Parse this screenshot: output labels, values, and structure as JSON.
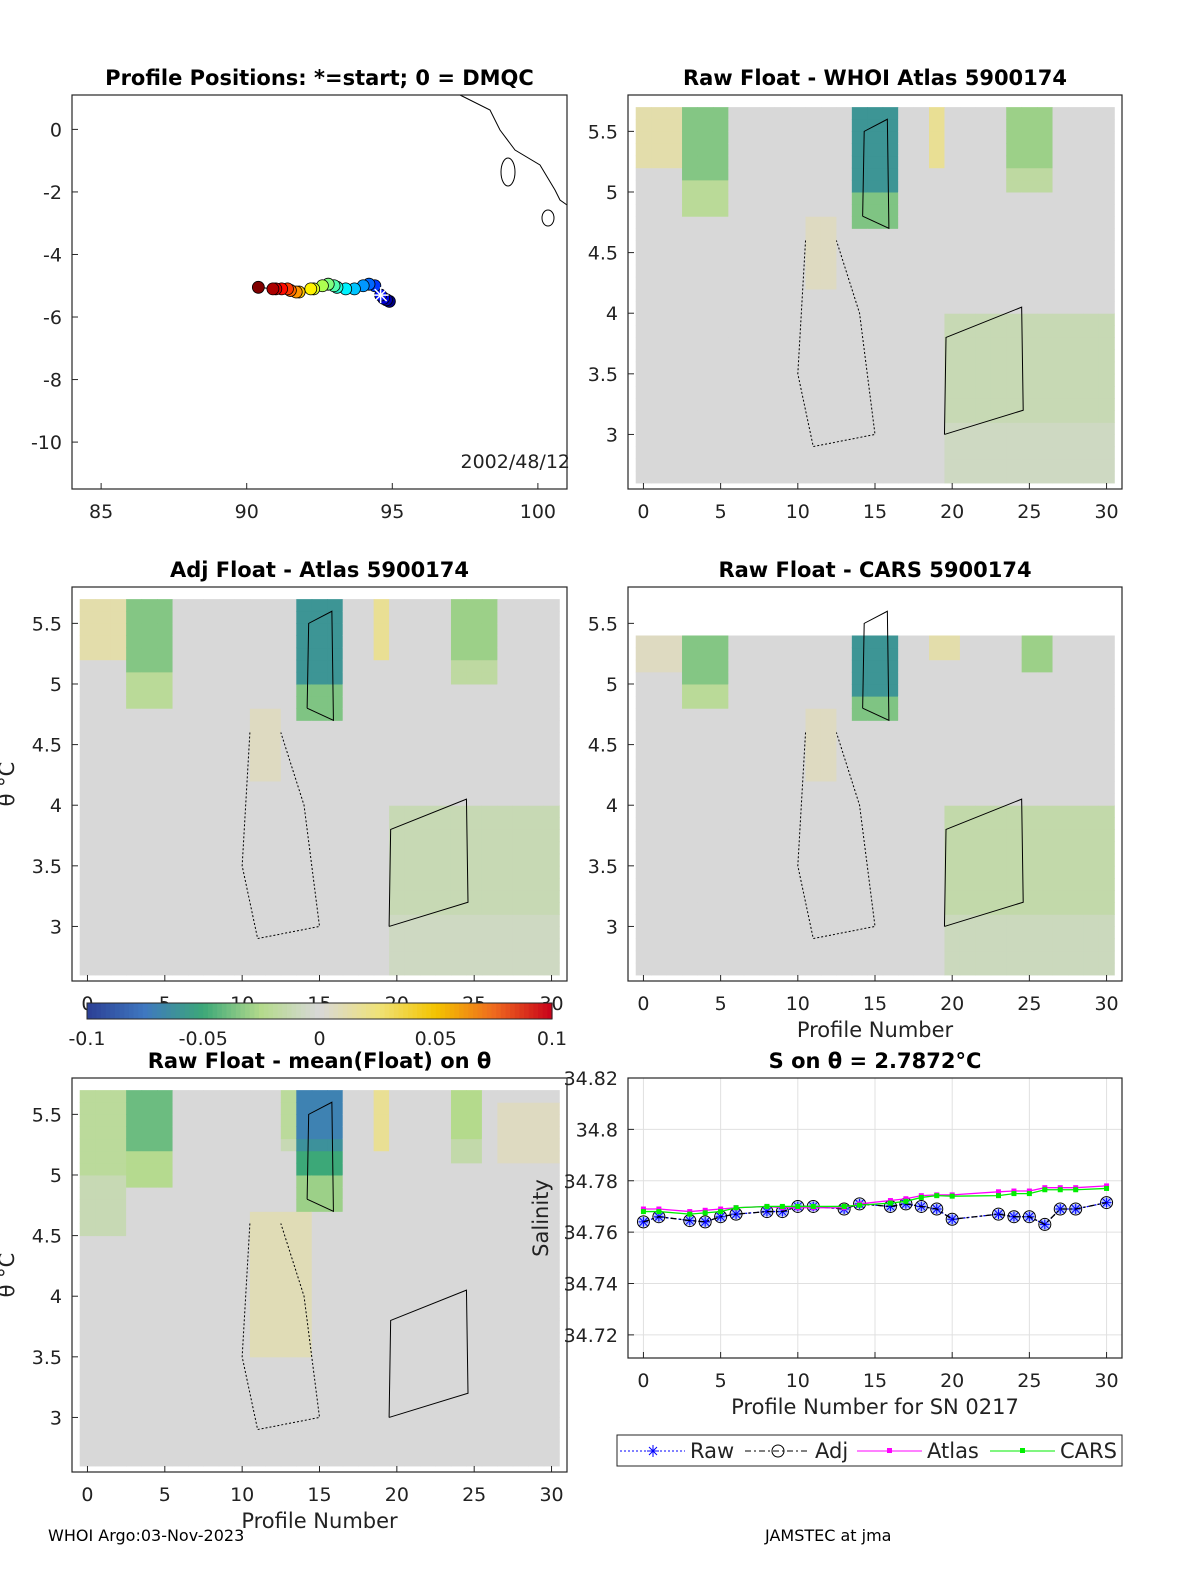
{
  "footer": {
    "left": "WHOI Argo:03-Nov-2023",
    "right": "JAMSTEC at jma"
  },
  "colorbar": {
    "ticks": [
      "-0.1",
      "-0.05",
      "0",
      "0.05",
      "0.1"
    ],
    "range": [
      -0.1,
      0.1
    ],
    "stops": [
      [
        -0.1,
        "#2b3f95"
      ],
      [
        -0.075,
        "#3f78c0"
      ],
      [
        -0.05,
        "#3ca878"
      ],
      [
        -0.025,
        "#b4da8c"
      ],
      [
        0,
        "#d8d8d8"
      ],
      [
        0.025,
        "#efe27a"
      ],
      [
        0.05,
        "#f3c400"
      ],
      [
        0.075,
        "#ef6a1e"
      ],
      [
        0.1,
        "#c8001a"
      ]
    ]
  },
  "chart_data": [
    {
      "type": "scatter",
      "id": "map",
      "title": "Profile Positions: *=start; 0 = DMQC",
      "xlim": [
        84,
        101
      ],
      "ylim": [
        -11.5,
        1.1
      ],
      "xticks": [
        "85",
        "90",
        "95",
        "100"
      ],
      "xtick_values": [
        85,
        90,
        95,
        100
      ],
      "yticks": [
        "0",
        "-2",
        "-4",
        "-6",
        "-8",
        "-10"
      ],
      "ytick_values": [
        0,
        -2,
        -4,
        -6,
        -8,
        -10
      ],
      "annotation": "2002/48/12",
      "start": {
        "lon": 94.6,
        "lat": -5.3
      },
      "lon": [
        94.9,
        94.8,
        94.7,
        94.6,
        94.4,
        94.2,
        94.0,
        93.7,
        93.4,
        93.1,
        93.0,
        92.8,
        92.6,
        92.3,
        92.2,
        91.8,
        91.7,
        91.5,
        91.4,
        91.2,
        91.0,
        90.9,
        90.4
      ],
      "lat": [
        -5.5,
        -5.45,
        -5.4,
        -5.3,
        -5.0,
        -4.95,
        -5.0,
        -5.1,
        -5.1,
        -5.05,
        -5.0,
        -4.95,
        -5.0,
        -5.1,
        -5.1,
        -5.2,
        -5.2,
        -5.15,
        -5.1,
        -5.1,
        -5.1,
        -5.1,
        -5.05
      ]
    },
    {
      "type": "heatmap",
      "id": "raw-atlas",
      "title": "Raw Float - WHOI Atlas  5900174",
      "xlim": [
        -1,
        31
      ],
      "ylim": [
        2.55,
        5.8
      ],
      "xticks": [
        "0",
        "5",
        "10",
        "15",
        "20",
        "25",
        "30"
      ],
      "yticks": [
        "5.5",
        "5",
        "4.5",
        "4",
        "3.5",
        "3"
      ],
      "ytop": 5.7,
      "patches": [
        [
          0,
          2,
          5.2,
          5.7,
          0.02
        ],
        [
          3,
          5,
          4.8,
          5.7,
          -0.035
        ],
        [
          14,
          16,
          4.7,
          5.6,
          -0.06
        ],
        [
          19,
          19,
          5.2,
          5.7,
          0.03
        ],
        [
          24,
          26,
          5.0,
          5.7,
          -0.03
        ],
        [
          11,
          12,
          4.2,
          4.7,
          0.01
        ],
        [
          20,
          30,
          2.6,
          4.0,
          -0.012
        ]
      ]
    },
    {
      "type": "heatmap",
      "id": "adj-atlas",
      "title": "Adj Float - Atlas  5900174",
      "xlim": [
        -1,
        31
      ],
      "ylim": [
        2.55,
        5.8
      ],
      "ylabel": "θ °C",
      "xticks": [
        "0",
        "5",
        "10",
        "15",
        "20",
        "25",
        "30"
      ],
      "yticks": [
        "5.5",
        "5",
        "4.5",
        "4",
        "3.5",
        "3"
      ],
      "ytop": 5.7,
      "patches": [
        [
          0,
          2,
          5.2,
          5.7,
          0.02
        ],
        [
          3,
          5,
          4.8,
          5.7,
          -0.035
        ],
        [
          14,
          16,
          4.7,
          5.6,
          -0.06
        ],
        [
          19,
          19,
          5.2,
          5.7,
          0.03
        ],
        [
          24,
          26,
          5.0,
          5.7,
          -0.03
        ],
        [
          11,
          12,
          4.2,
          4.7,
          0.01
        ],
        [
          20,
          30,
          2.6,
          4.0,
          -0.012
        ]
      ]
    },
    {
      "type": "heatmap",
      "id": "raw-cars",
      "title": "Raw Float - CARS  5900174",
      "xlim": [
        -1,
        31
      ],
      "ylim": [
        2.55,
        5.8
      ],
      "xlabel": "Profile Number",
      "xticks": [
        "0",
        "5",
        "10",
        "15",
        "20",
        "25",
        "30"
      ],
      "yticks": [
        "5.5",
        "5",
        "4.5",
        "4",
        "3.5",
        "3"
      ],
      "ytop": 5.4,
      "patches": [
        [
          0,
          2,
          5.1,
          5.4,
          0.01
        ],
        [
          3,
          5,
          4.8,
          5.4,
          -0.035
        ],
        [
          14,
          16,
          4.7,
          5.4,
          -0.06
        ],
        [
          19,
          20,
          5.2,
          5.4,
          0.02
        ],
        [
          25,
          26,
          5.1,
          5.4,
          -0.03
        ],
        [
          11,
          12,
          4.2,
          4.7,
          0.01
        ],
        [
          20,
          30,
          2.6,
          4.0,
          -0.015
        ]
      ]
    },
    {
      "type": "heatmap",
      "id": "raw-mean",
      "title": "Raw Float - mean(Float) on θ",
      "xlim": [
        -1,
        31
      ],
      "ylim": [
        2.55,
        5.8
      ],
      "ylabel": "θ °C",
      "xlabel": "Profile Number",
      "xticks": [
        "0",
        "5",
        "10",
        "15",
        "20",
        "25",
        "30"
      ],
      "yticks": [
        "5.5",
        "5",
        "4.5",
        "4",
        "3.5",
        "3"
      ],
      "ytop": 5.7,
      "patches": [
        [
          0,
          2,
          4.5,
          5.7,
          -0.02
        ],
        [
          3,
          5,
          4.9,
          5.8,
          -0.04
        ],
        [
          14,
          16,
          4.7,
          5.6,
          -0.05
        ],
        [
          19,
          19,
          5.2,
          5.7,
          0.03
        ],
        [
          24,
          25,
          5.1,
          5.7,
          -0.025
        ],
        [
          11,
          14,
          3.5,
          4.6,
          0.015
        ],
        [
          13,
          16,
          5.2,
          5.7,
          -0.02
        ],
        [
          27,
          30,
          5.1,
          5.5,
          0.01
        ]
      ]
    },
    {
      "type": "line",
      "id": "s-on-theta",
      "title": "S on θ = 2.7872°C",
      "xlabel": "Profile Number for SN 0217",
      "ylabel": "Salinity",
      "xlim": [
        -1,
        31
      ],
      "ylim": [
        34.711,
        34.82
      ],
      "xticks": [
        "0",
        "5",
        "10",
        "15",
        "20",
        "25",
        "30"
      ],
      "xtick_values": [
        0,
        5,
        10,
        15,
        20,
        25,
        30
      ],
      "yticks": [
        "34.82",
        "34.8",
        "34.78",
        "34.76",
        "34.74",
        "34.72"
      ],
      "ytick_values": [
        34.82,
        34.8,
        34.78,
        34.76,
        34.74,
        34.72
      ],
      "x": [
        0,
        1,
        3,
        4,
        5,
        6,
        8,
        9,
        10,
        11,
        13,
        14,
        16,
        17,
        18,
        19,
        20,
        23,
        24,
        25,
        26,
        27,
        28,
        30
      ],
      "series": [
        {
          "name": "Raw",
          "color": "#0000ff",
          "values": [
            34.764,
            34.766,
            34.7645,
            34.764,
            34.766,
            34.767,
            34.768,
            34.768,
            34.77,
            34.77,
            34.769,
            34.771,
            34.77,
            34.771,
            34.77,
            34.769,
            34.765,
            34.767,
            34.766,
            34.766,
            34.763,
            34.769,
            34.769,
            34.7715
          ]
        },
        {
          "name": "Adj",
          "color": "#000000",
          "values": [
            34.764,
            34.766,
            34.7645,
            34.764,
            34.766,
            34.767,
            34.768,
            34.768,
            34.77,
            34.77,
            34.769,
            34.771,
            34.77,
            34.771,
            34.77,
            34.769,
            34.765,
            34.767,
            34.766,
            34.766,
            34.763,
            34.769,
            34.769,
            34.7715
          ]
        },
        {
          "name": "Atlas",
          "color": "#ff00ff",
          "values": [
            34.769,
            34.769,
            34.768,
            34.7685,
            34.769,
            34.7695,
            34.77,
            34.7695,
            34.7695,
            34.7695,
            34.7695,
            34.771,
            34.7723,
            34.773,
            34.7742,
            34.7745,
            34.7745,
            34.7757,
            34.776,
            34.776,
            34.7773,
            34.7773,
            34.7773,
            34.778
          ]
        },
        {
          "name": "CARS",
          "color": "#00ee00",
          "values": [
            34.768,
            34.768,
            34.767,
            34.7675,
            34.768,
            34.7695,
            34.77,
            34.77,
            34.77,
            34.77,
            34.77,
            34.7705,
            34.7713,
            34.772,
            34.7735,
            34.7742,
            34.774,
            34.7742,
            34.775,
            34.775,
            34.7765,
            34.7765,
            34.7765,
            34.777
          ]
        }
      ],
      "legend": [
        "Raw",
        "Adj",
        "Atlas",
        "CARS"
      ],
      "legend_position": "bottom-outside"
    }
  ]
}
